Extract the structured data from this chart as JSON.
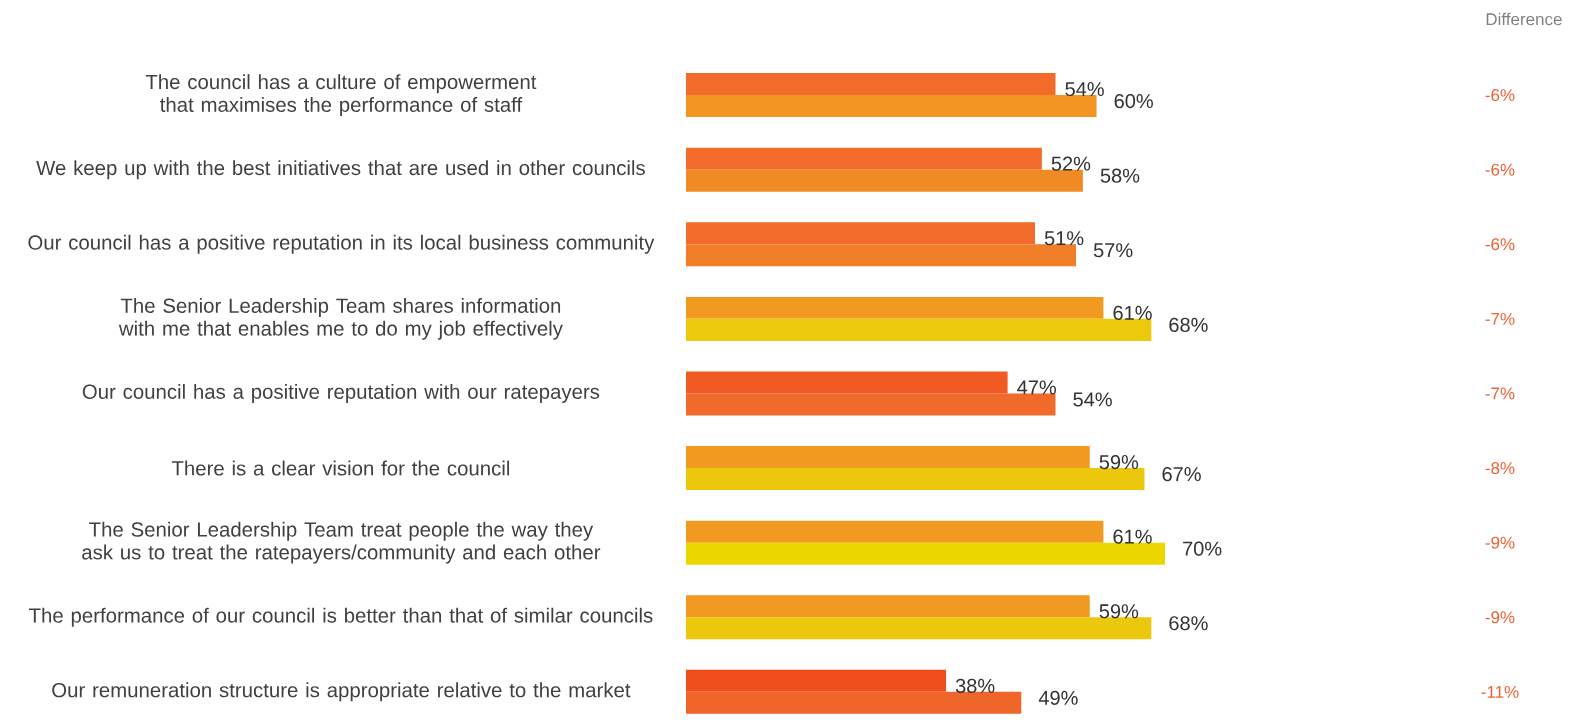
{
  "chart_data": {
    "type": "bar",
    "orientation": "horizontal",
    "categories": [
      "The council has a culture of empowerment that maximises the performance of staff",
      "We keep up with the best initiatives that are used in other councils",
      "Our council has a positive reputation in its local business community",
      "The Senior Leadership Team shares information with me that enables me to do my job effectively",
      "Our council has a positive reputation with our ratepayers",
      "There is a clear vision for the council",
      "The Senior Leadership Team treat people the way they ask us to treat the ratepayers/community and each other",
      "The performance of our council is better than that of similar councils",
      "Our remuneration structure is appropriate relative to the market"
    ],
    "series": [
      {
        "values": [
          54,
          52,
          51,
          61,
          47,
          59,
          61,
          59,
          38
        ],
        "colors": [
          "#f26b2a",
          "#f26b2a",
          "#f26b2a",
          "#f09a22",
          "#f15a22",
          "#f09a22",
          "#f09a22",
          "#f09a22",
          "#ef4e1c"
        ],
        "value_labels": [
          "54%",
          "52%",
          "51%",
          "61%",
          "47%",
          "59%",
          "61%",
          "59%",
          "38%"
        ]
      },
      {
        "values": [
          60,
          58,
          57,
          68,
          54,
          67,
          70,
          68,
          49
        ],
        "colors": [
          "#f29522",
          "#f08a25",
          "#f07e28",
          "#ecc90a",
          "#f06a2c",
          "#ecc80c",
          "#ecd600",
          "#ecc80c",
          "#f0652a"
        ],
        "value_labels": [
          "60%",
          "58%",
          "57%",
          "68%",
          "54%",
          "67%",
          "70%",
          "68%",
          "49%"
        ]
      }
    ],
    "annotations": [
      "Difference",
      "-6%",
      "-6%",
      "-6%",
      "-7%",
      "-7%",
      "-8%",
      "-9%",
      "-9%",
      "-11%"
    ]
  }
}
